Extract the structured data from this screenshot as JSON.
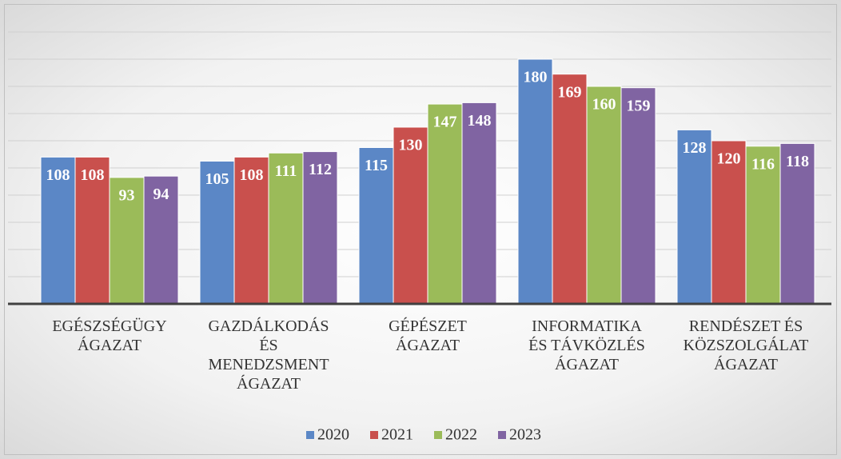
{
  "chart_data": {
    "type": "bar",
    "categories": [
      "EGÉSZSÉGÜGY\nÁGAZAT",
      "GAZDÁLKODÁS\nÉS\nMENEDZSMENT\nÁGAZAT",
      "GÉPÉSZET\nÁGAZAT",
      "INFORMATIKA\nÉS TÁVKÖZLÉS\nÁGAZAT",
      "RENDÉSZET ÉS\nKÖZSZOLGÁLAT\nÁGAZAT"
    ],
    "series": [
      {
        "name": "2020",
        "color": "#5b87c6",
        "values": [
          108,
          105,
          115,
          180,
          128
        ]
      },
      {
        "name": "2021",
        "color": "#c9504d",
        "values": [
          108,
          108,
          130,
          169,
          120
        ]
      },
      {
        "name": "2022",
        "color": "#9bbb59",
        "values": [
          93,
          111,
          147,
          160,
          116
        ]
      },
      {
        "name": "2023",
        "color": "#8064a2",
        "values": [
          94,
          112,
          148,
          159,
          118
        ]
      }
    ],
    "ylim": [
      0,
      200
    ],
    "yticks": [
      0,
      20,
      40,
      60,
      80,
      100,
      120,
      140,
      160,
      180,
      200
    ],
    "grid": true,
    "legend": "bottom"
  }
}
